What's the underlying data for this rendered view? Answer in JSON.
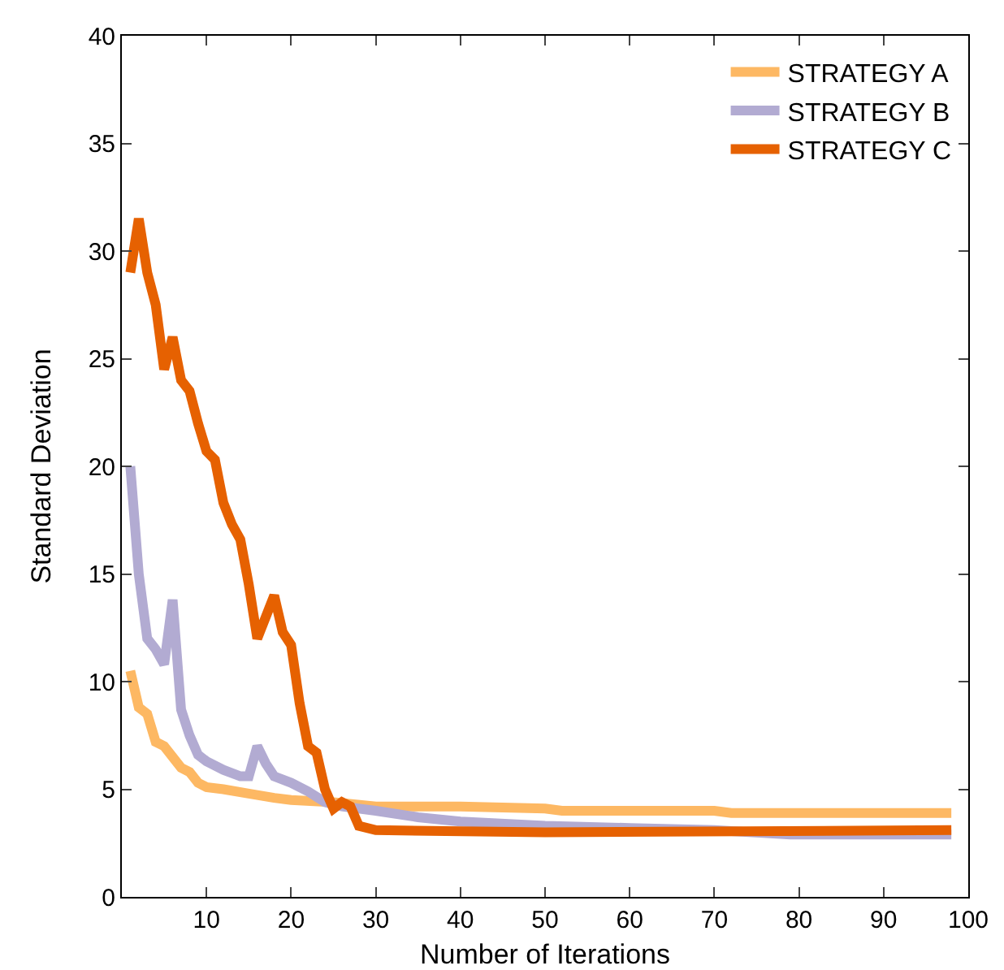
{
  "chart_data": {
    "type": "line",
    "xlabel": "Number of Iterations",
    "ylabel": "Standard Deviation",
    "xlim": [
      0,
      100
    ],
    "xticks": [
      10,
      20,
      30,
      40,
      50,
      60,
      70,
      80,
      90,
      100
    ],
    "ylim": [
      0,
      40
    ],
    "yticks": [
      0,
      5,
      10,
      15,
      20,
      25,
      30,
      35,
      40
    ],
    "grid": false,
    "legend": "top right",
    "marker": "none",
    "line_style": "solid",
    "series": [
      {
        "name": "STRATEGY A",
        "color": "#fdb863",
        "x": [
          1,
          2,
          3,
          4,
          5,
          6,
          7,
          8,
          9,
          10,
          12,
          15,
          18,
          20,
          25,
          30,
          40,
          50,
          52,
          70,
          72,
          98
        ],
        "values": [
          10.5,
          8.8,
          8.5,
          7.2,
          7.0,
          6.5,
          6.0,
          5.8,
          5.3,
          5.1,
          5.0,
          4.8,
          4.6,
          4.5,
          4.4,
          4.2,
          4.2,
          4.1,
          4.0,
          4.0,
          3.9,
          3.9
        ]
      },
      {
        "name": "STRATEGY B",
        "color": "#b2abd2",
        "x": [
          1,
          2,
          3,
          4,
          5,
          6,
          7,
          8,
          9,
          10,
          12,
          14,
          15,
          16,
          17,
          18,
          20,
          22,
          24,
          26,
          30,
          35,
          40,
          50,
          60,
          70,
          79,
          98
        ],
        "values": [
          20,
          15,
          12,
          11.5,
          10.8,
          13.8,
          8.7,
          7.5,
          6.6,
          6.3,
          5.9,
          5.6,
          5.6,
          7.0,
          6.2,
          5.6,
          5.3,
          4.9,
          4.4,
          4.2,
          4.0,
          3.7,
          3.5,
          3.3,
          3.2,
          3.1,
          2.9,
          2.9
        ]
      },
      {
        "name": "STRATEGY C",
        "color": "#e66101",
        "x": [
          1,
          2,
          3,
          4,
          5,
          6,
          7,
          8,
          9,
          10,
          11,
          12,
          13,
          14,
          15,
          16,
          17,
          18,
          19,
          20,
          21,
          22,
          23,
          24,
          25,
          26,
          27,
          28,
          30,
          50,
          98
        ],
        "values": [
          29,
          31.5,
          29,
          27.5,
          24.5,
          26,
          24,
          23.5,
          22,
          20.7,
          20.3,
          18.3,
          17.3,
          16.6,
          14.5,
          12,
          13,
          14,
          12.3,
          11.7,
          9,
          7,
          6.7,
          5,
          4.1,
          4.4,
          4.2,
          3.3,
          3.1,
          3.0,
          3.1
        ]
      }
    ]
  }
}
